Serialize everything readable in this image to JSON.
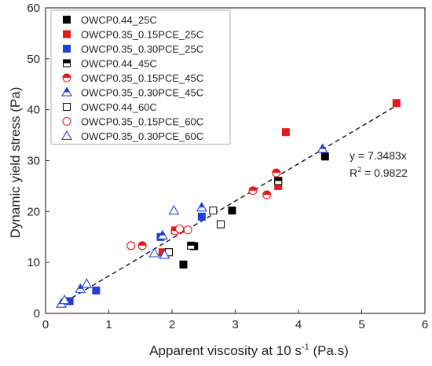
{
  "chart_data": {
    "type": "scatter",
    "xlabel_main": "Apparent viscosity at 10 s",
    "xlabel_sup": "-1",
    "xlabel_tail": " (Pa.s)",
    "ylabel": "Dynamic yield stress (Pa)",
    "xlim": [
      0,
      6
    ],
    "ylim": [
      0,
      60
    ],
    "xticks": [
      0,
      1,
      2,
      3,
      4,
      5,
      6
    ],
    "yticks": [
      0,
      10,
      20,
      30,
      40,
      50,
      60
    ],
    "grid": false,
    "legend_position": "top-left",
    "annotation_equation": "y = 7.3483x",
    "annotation_r2_prefix": "R",
    "annotation_r2_sup": "2",
    "annotation_r2_value": " = 0.9822",
    "fit_line": {
      "slope": 7.3483,
      "x_range": [
        0.2,
        5.6
      ],
      "style": "dashed",
      "color": "#111111"
    },
    "series": [
      {
        "name": "OWCP0.44_25C",
        "marker": "square-filled",
        "color": "#000000",
        "points": [
          [
            2.18,
            9.6
          ],
          [
            2.35,
            13.2
          ],
          [
            2.95,
            20.2
          ],
          [
            3.68,
            26.0
          ],
          [
            4.42,
            30.8
          ]
        ]
      },
      {
        "name": "OWCP0.35_0.15PCE_25C",
        "marker": "square-filled",
        "color": "#e31a1c",
        "points": [
          [
            1.85,
            12.0
          ],
          [
            2.05,
            16.3
          ],
          [
            3.68,
            25.0
          ],
          [
            3.8,
            35.6
          ],
          [
            5.55,
            41.3
          ]
        ]
      },
      {
        "name": "OWCP0.35_0.30PCE_25C",
        "marker": "square-filled",
        "color": "#1f3fd6",
        "points": [
          [
            0.38,
            2.4
          ],
          [
            0.8,
            4.5
          ],
          [
            1.82,
            15.0
          ],
          [
            2.47,
            19.0
          ]
        ]
      },
      {
        "name": "OWCP0.44_45C",
        "marker": "square-half",
        "color": "#000000",
        "points": [
          [
            1.95,
            12.0
          ],
          [
            2.3,
            13.3
          ],
          [
            2.77,
            17.5
          ],
          [
            3.68,
            26.0
          ]
        ]
      },
      {
        "name": "OWCP0.35_0.15PCE_45C",
        "marker": "circle-half",
        "color": "#e31a1c",
        "points": [
          [
            1.53,
            13.3
          ],
          [
            2.05,
            16.2
          ],
          [
            3.28,
            24.1
          ],
          [
            3.5,
            23.3
          ],
          [
            3.65,
            27.6
          ]
        ]
      },
      {
        "name": "OWCP0.35_0.30PCE_45C",
        "marker": "triangle-half",
        "color": "#1f3fd6",
        "points": [
          [
            0.25,
            1.9
          ],
          [
            0.55,
            4.8
          ],
          [
            1.85,
            15.3
          ],
          [
            2.47,
            20.8
          ],
          [
            4.38,
            32.3
          ]
        ]
      },
      {
        "name": "OWCP0.44_60C",
        "marker": "square-open",
        "color": "#000000",
        "points": [
          [
            1.95,
            12.0
          ],
          [
            2.65,
            20.2
          ],
          [
            2.77,
            17.5
          ]
        ]
      },
      {
        "name": "OWCP0.35_0.15PCE_60C",
        "marker": "circle-open",
        "color": "#e31a1c",
        "points": [
          [
            1.35,
            13.3
          ],
          [
            2.12,
            16.6
          ],
          [
            2.25,
            16.4
          ]
        ]
      },
      {
        "name": "OWCP0.35_0.30PCE_60C",
        "marker": "triangle-open",
        "color": "#1f3fd6",
        "points": [
          [
            0.3,
            2.6
          ],
          [
            0.65,
            5.8
          ],
          [
            1.72,
            11.8
          ],
          [
            1.88,
            11.5
          ],
          [
            2.03,
            20.2
          ]
        ]
      }
    ]
  }
}
